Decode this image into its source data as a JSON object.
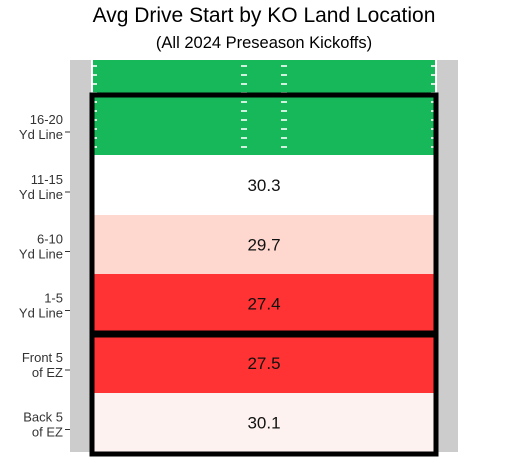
{
  "chart_data": {
    "type": "heatmap",
    "title": "Avg Drive Start by KO Land Location",
    "subtitle": "(All 2024 Preseason Kickoffs)",
    "xlabel": "",
    "ylabel": "",
    "categories": [
      {
        "label": [
          "16-20",
          "Yd Line"
        ],
        "value": null,
        "color": "#16b85a"
      },
      {
        "label": [
          "11-15",
          "Yd Line"
        ],
        "value": 30.3,
        "color": "#ffffff"
      },
      {
        "label": [
          "6-10",
          "Yd Line"
        ],
        "value": 29.7,
        "color": "#fed7cf"
      },
      {
        "label": [
          "1-5",
          "Yd Line"
        ],
        "value": 27.4,
        "color": "#ff3333"
      },
      {
        "label": [
          "Front 5",
          "of EZ"
        ],
        "value": 27.5,
        "color": "#ff3333"
      },
      {
        "label": [
          "Back 5",
          "of EZ"
        ],
        "value": 30.1,
        "color": "#fdf2ef"
      }
    ],
    "groups": [
      {
        "rows": [
          "16-20",
          "11-15",
          "6-10",
          "1-5"
        ],
        "name": ""
      },
      {
        "rows": [
          "Front 5",
          "Back 5"
        ],
        "name": ""
      }
    ],
    "field_color": "#16b85a",
    "sideline_color": "#cccccc",
    "grid": false,
    "legend": "none"
  }
}
